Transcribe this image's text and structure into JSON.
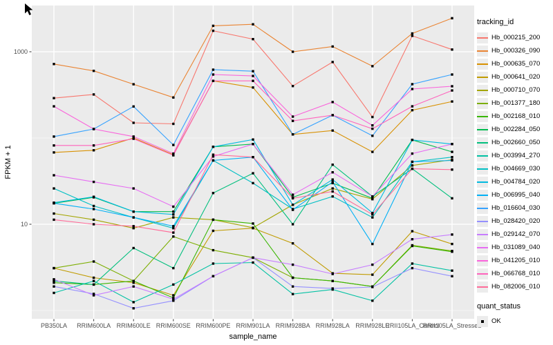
{
  "chart_data": {
    "type": "line",
    "title": "",
    "xlabel": "sample_name",
    "ylabel": "FPKM + 1",
    "y_scale": "log10",
    "y_ticks": [
      10,
      1000
    ],
    "y_minor_gridlines": [
      1,
      100
    ],
    "ylim": [
      0.8,
      3400
    ],
    "grid": true,
    "panel_bg": "#EBEBEB",
    "grid_color": "#FFFFFF",
    "tick_label_color": "#4D4D4D",
    "point_color": "#000000",
    "legend_position": "right",
    "legend_title": "tracking_id",
    "quant_legend": {
      "title": "quant_status",
      "items": [
        "OK"
      ]
    },
    "categories": [
      "PB350LA",
      "RRIM600LA",
      "RRIM600LE",
      "RRIM600SE",
      "RRIM600PE",
      "RRIM901LA",
      "RRIM928BA",
      "RRIM928LA",
      "RRIM928LE",
      "RRII105LA_Control",
      "RRII105LA_Stressed"
    ],
    "series": [
      {
        "name": "Hb_000215_200",
        "color": "#F8766D",
        "values": [
          290,
          320,
          150,
          146,
          1750,
          1400,
          400,
          760,
          175,
          1530,
          1060
        ]
      },
      {
        "name": "Hb_000326_090",
        "color": "#EA8331",
        "values": [
          720,
          600,
          420,
          295,
          2000,
          2080,
          1000,
          1150,
          680,
          1630,
          2450
        ]
      },
      {
        "name": "Hb_000635_070",
        "color": "#D89000",
        "values": [
          68,
          72,
          100,
          64,
          460,
          385,
          110,
          122,
          69,
          210,
          265
        ]
      },
      {
        "name": "Hb_000641_020",
        "color": "#C09B00",
        "values": [
          3.1,
          2.4,
          2.1,
          1.5,
          8.4,
          9,
          6,
          2.7,
          2.6,
          8.3,
          5.9
        ]
      },
      {
        "name": "Hb_000710_070",
        "color": "#A3A500",
        "values": [
          13.3,
          11.3,
          9,
          12,
          11.3,
          9.1,
          16.8,
          26,
          19.5,
          48,
          56
        ]
      },
      {
        "name": "Hb_001377_180",
        "color": "#7CAE00",
        "values": [
          3.1,
          3.7,
          2.2,
          7.2,
          5,
          4.1,
          2.4,
          2.2,
          1.9,
          5.7,
          4.9
        ]
      },
      {
        "name": "Hb_002168_010",
        "color": "#39B600",
        "values": [
          2.1,
          2,
          2.2,
          1.4,
          11.3,
          10.2,
          2.4,
          2.2,
          1.9,
          5.6,
          4.8
        ]
      },
      {
        "name": "Hb_002284_050",
        "color": "#00BB4E",
        "values": [
          17.5,
          20.5,
          14,
          14,
          79,
          85,
          20.5,
          30,
          20,
          95,
          69
        ]
      },
      {
        "name": "Hb_002660_050",
        "color": "#00BF7D",
        "values": [
          2.2,
          2,
          5.3,
          3.1,
          23,
          39,
          10,
          49,
          21,
          44,
          20
        ]
      },
      {
        "name": "Hb_003994_270",
        "color": "#00C1A3",
        "values": [
          1.6,
          2.2,
          1.25,
          2,
          3.5,
          3.6,
          1.55,
          1.75,
          1.3,
          3.5,
          2.9
        ]
      },
      {
        "name": "Hb_004669_030",
        "color": "#00BFC4",
        "values": [
          26,
          16.3,
          12,
          9,
          55,
          30,
          15,
          21,
          12,
          53,
          60
        ]
      },
      {
        "name": "Hb_004784_020",
        "color": "#00BAE0",
        "values": [
          17.8,
          20.8,
          14,
          13,
          79,
          96,
          16.8,
          33,
          13.5,
          95,
          85
        ]
      },
      {
        "name": "Hb_006995_040",
        "color": "#00B0F6",
        "values": [
          17.5,
          15,
          12,
          9.5,
          55,
          60,
          14.7,
          31,
          5.9,
          53,
          55
        ]
      },
      {
        "name": "Hb_016604_030",
        "color": "#35A2FF",
        "values": [
          104,
          127,
          232,
          83,
          620,
          595,
          110,
          184,
          106,
          421,
          545
        ]
      },
      {
        "name": "Hb_028420_020",
        "color": "#9590FF",
        "values": [
          1.9,
          1.56,
          1.06,
          1.3,
          2.5,
          4.1,
          1.9,
          1.8,
          1.87,
          3.1,
          2.5
        ]
      },
      {
        "name": "Hb_029142_070",
        "color": "#C77CFF",
        "values": [
          2.3,
          1.5,
          1.9,
          1.35,
          2.5,
          4.1,
          3.4,
          2.65,
          3.4,
          6.7,
          7.6
        ]
      },
      {
        "name": "Hb_031089_040",
        "color": "#E76BF3",
        "values": [
          37,
          31,
          26,
          16,
          61,
          85,
          22,
          40,
          21,
          66,
          85
        ]
      },
      {
        "name": "Hb_041205_010",
        "color": "#FA62DB",
        "values": [
          233,
          127,
          104,
          66,
          545,
          524,
          177,
          261,
          140,
          370,
          398
        ]
      },
      {
        "name": "Hb_066768_010",
        "color": "#FF62BC",
        "values": [
          82,
          82,
          98,
          63,
          460,
          460,
          158,
          184,
          128,
          233,
          356
        ]
      },
      {
        "name": "Hb_082006_010",
        "color": "#FF6A98",
        "values": [
          11.3,
          10,
          9.5,
          8,
          64,
          60,
          20,
          24,
          13,
          44,
          43
        ]
      }
    ]
  }
}
